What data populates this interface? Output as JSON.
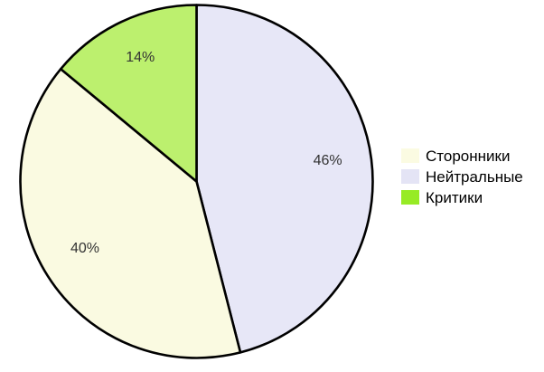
{
  "chart_data": {
    "type": "pie",
    "title": "",
    "unit": "%",
    "start_angle_deg_clockwise_from_top": 0,
    "direction": "clockwise",
    "slices": [
      {
        "key": "neutral",
        "label": "Нейтральные",
        "value": 46,
        "display": "46%",
        "color": "#E7E7F7"
      },
      {
        "key": "supporters",
        "label": "Сторонники",
        "value": 40,
        "display": "40%",
        "color": "#FAFAE1"
      },
      {
        "key": "critics",
        "label": "Критики",
        "value": 14,
        "display": "14%",
        "color": "#BCF06E"
      }
    ],
    "legend": {
      "position": "right",
      "items": [
        {
          "key": "supporters",
          "label": "Сторонники",
          "swatch_color": "#FBFBE2"
        },
        {
          "key": "neutral",
          "label": "Нейтральные",
          "swatch_color": "#E4E4F5"
        },
        {
          "key": "critics",
          "label": "Критики",
          "swatch_color": "#97EB25"
        }
      ]
    },
    "stroke_color": "#000000",
    "label_color": "#333333",
    "background": "#FFFFFF"
  }
}
